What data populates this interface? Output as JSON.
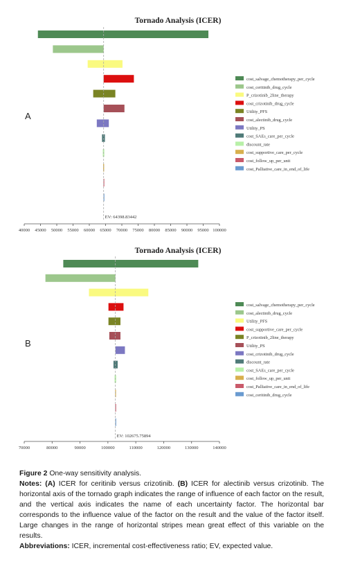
{
  "chart_data": [
    {
      "panel_label": "A",
      "type": "tornado",
      "title": "Tornado Analysis (ICER)",
      "ev_label": "EV: 64398.83442",
      "ev": 64398.83,
      "xlim": [
        40000,
        100000
      ],
      "x_ticks": [
        "40000",
        "45000",
        "50000",
        "55000",
        "60000",
        "65000",
        "70000",
        "75000",
        "80000",
        "85000",
        "90000",
        "95000",
        "100000"
      ],
      "series": [
        {
          "name": "cost_salvage_chemotherapy_per_cycle",
          "low": 44200,
          "high": 96600,
          "color": "#4e8a55"
        },
        {
          "name": "cost_ceritinib_drug_cycle",
          "low": 48800,
          "high": 64400,
          "color": "#9cc78c"
        },
        {
          "name": "P_crizotinib_2line_therapy",
          "low": 59500,
          "high": 70200,
          "color": "#fafa80"
        },
        {
          "name": "cost_crizotinib_drug_cycle",
          "low": 64400,
          "high": 73700,
          "color": "#dc0f0f"
        },
        {
          "name": "Utility_PFS",
          "low": 61200,
          "high": 68000,
          "color": "#7a8424"
        },
        {
          "name": "cost_alectinib_drug_cycle",
          "low": 64400,
          "high": 70800,
          "color": "#a65058"
        },
        {
          "name": "Utility_PS",
          "low": 62300,
          "high": 66000,
          "color": "#7c78c2"
        },
        {
          "name": "cost_SAEs_care_per_cycle",
          "low": 63900,
          "high": 64800,
          "color": "#4f7a78"
        },
        {
          "name": "discount_rate",
          "low": 64150,
          "high": 64600,
          "color": "#b8f0a8"
        },
        {
          "name": "cost_supportive_care_per_cycle",
          "low": 64250,
          "high": 64550,
          "color": "#d8b04e"
        },
        {
          "name": "cost_follow_up_per_unit",
          "low": 64350,
          "high": 64450,
          "color": "#c95a6a"
        },
        {
          "name": "cost_Palliative_care_in_end_of_life",
          "low": 64370,
          "high": 64430,
          "color": "#6a9bd0"
        }
      ]
    },
    {
      "panel_label": "B",
      "type": "tornado",
      "title": "Tornado Analysis (ICER)",
      "ev_label": "EV: 102675.75894",
      "ev": 102675.76,
      "xlim": [
        70000,
        140000
      ],
      "x_ticks": [
        "70000",
        "80000",
        "90000",
        "100000",
        "110000",
        "120000",
        "130000",
        "140000"
      ],
      "series": [
        {
          "name": "cost_salvage_chemotherapy_per_cycle",
          "low": 84000,
          "high": 132400,
          "color": "#4e8a55"
        },
        {
          "name": "cost_alectinib_drug_cycle",
          "low": 77600,
          "high": 102700,
          "color": "#9cc78c"
        },
        {
          "name": "Utility_PFS",
          "low": 93200,
          "high": 114500,
          "color": "#fafa80"
        },
        {
          "name": "cost_supportive_care_per_cycle",
          "low": 100200,
          "high": 105600,
          "color": "#dc0f0f"
        },
        {
          "name": "P_crizotinib_2line_therapy",
          "low": 100200,
          "high": 104500,
          "color": "#7a8424"
        },
        {
          "name": "Utility_PS",
          "low": 100500,
          "high": 104500,
          "color": "#a65058"
        },
        {
          "name": "cost_crizotinib_drug_cycle",
          "low": 102700,
          "high": 106100,
          "color": "#7c78c2"
        },
        {
          "name": "discount_rate",
          "low": 102000,
          "high": 103500,
          "color": "#4f7a78"
        },
        {
          "name": "cost_SAEs_care_per_cycle",
          "low": 102400,
          "high": 102950,
          "color": "#b8f0a8"
        },
        {
          "name": "cost_follow_up_per_unit",
          "low": 102600,
          "high": 102750,
          "color": "#d8b04e"
        },
        {
          "name": "cost_Palliative_care_in_end_of_life",
          "low": 102640,
          "high": 102710,
          "color": "#c95a6a"
        },
        {
          "name": "cost_ceritinib_drug_cycle",
          "low": 102660,
          "high": 102690,
          "color": "#6a9bd0"
        }
      ]
    }
  ],
  "caption": {
    "figure_label": "Figure 2",
    "figure_title": "One-way sensitivity analysis.",
    "notes_label": "Notes:",
    "notes_a_label": "(A)",
    "notes_a_text": "ICER for ceritinib versus crizotinib.",
    "notes_b_label": "(B)",
    "notes_b_text": "ICER for alectinib versus crizotinib. The horizontal axis of the tornado graph indicates the range of influence of each factor on the result, and the vertical axis indicates the name of each uncertainty factor. The horizontal bar corresponds to the influence value of the factor on the result and the value of the factor itself. Large changes in the range of horizontal stripes mean great effect of this variable on the results.",
    "abbrev_label": "Abbreviations:",
    "abbrev_text": "ICER, incremental cost-effectiveness ratio; EV, expected value."
  }
}
